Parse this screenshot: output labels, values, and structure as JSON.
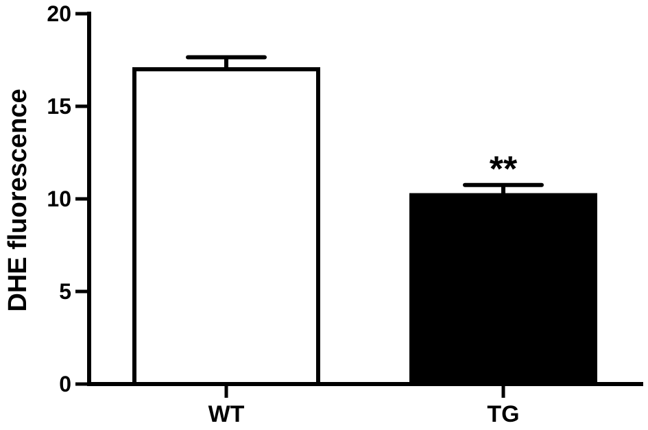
{
  "chart_data": {
    "type": "bar",
    "title": "",
    "xlabel": "",
    "ylabel": "DHE fluorescence",
    "ylim": [
      0,
      20
    ],
    "yticks": [
      0,
      5,
      10,
      15,
      20
    ],
    "ytick_labels": [
      "0",
      "5",
      "10",
      "15",
      "20"
    ],
    "categories": [
      "WT",
      "TG"
    ],
    "values": [
      17.0,
      10.2
    ],
    "error_upper": [
      0.65,
      0.55
    ],
    "bar_fill": [
      "#ffffff",
      "#000000"
    ],
    "bar_stroke": "#000000",
    "grid": false,
    "legend": "none",
    "annotations": [
      {
        "category": "TG",
        "text": "**"
      }
    ]
  }
}
